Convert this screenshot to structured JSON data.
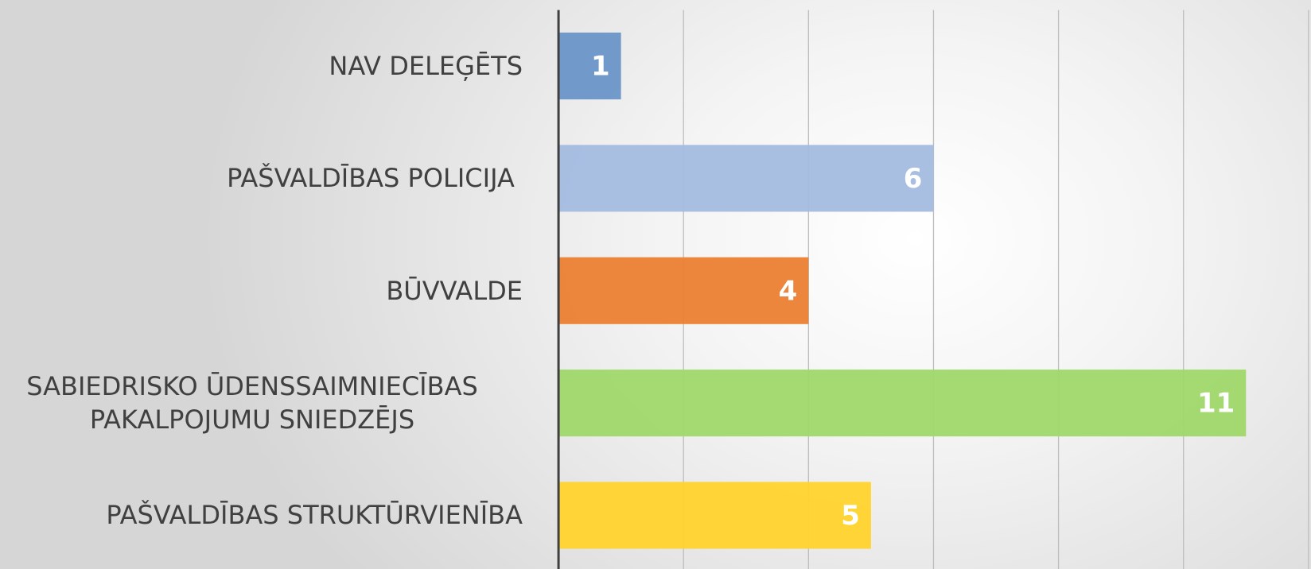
{
  "chart_data": {
    "type": "bar",
    "orientation": "horizontal",
    "categories": [
      "NAV DELEĢĒTS",
      "PAŠVALDĪBAS POLICIJA ",
      "BŪVVALDE",
      "SABIEDRISKO ŪDENSSAIMNIECĪBAS PAKALPOJUMU SNIEDZĒJS",
      "PAŠVALDĪBAS STRUKTŪRVIENĪBA"
    ],
    "values": [
      1,
      6,
      4,
      11,
      5
    ],
    "colors": [
      "#6a96c8",
      "#a3bce0",
      "#eb8031",
      "#a0d86a",
      "#ffd32c"
    ],
    "xlim": [
      0,
      12
    ],
    "xticks": [
      0,
      2,
      4,
      6,
      8,
      10,
      12
    ],
    "grid": true
  }
}
